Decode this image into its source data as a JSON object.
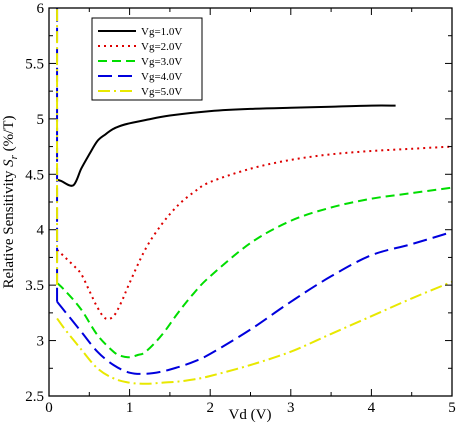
{
  "chart_data": {
    "type": "line",
    "title": "",
    "xlabel": "Vd (V)",
    "ylabel": {
      "prefix": "Relative Sensitivity ",
      "symbol": "S",
      "subscript": "r",
      "suffix": " (%/T)"
    },
    "xlim": [
      0,
      5
    ],
    "ylim": [
      2.5,
      6
    ],
    "xticks": [
      "0",
      "1",
      "2",
      "3",
      "4",
      "5"
    ],
    "yticks": [
      "2.5",
      "3",
      "3.5",
      "4",
      "4.5",
      "5",
      "5.5",
      "6"
    ],
    "grid": false,
    "legend_position": "top-left",
    "series": [
      {
        "name": "Vg=1.0V",
        "color": "#000000",
        "dash": "solid",
        "x": [
          0.1,
          0.15,
          0.3,
          0.4,
          0.5,
          0.6,
          0.7,
          0.8,
          0.9,
          1.0,
          1.2,
          1.5,
          2.0,
          2.5,
          3.0,
          3.5,
          4.0,
          4.3
        ],
        "y": [
          4.45,
          4.44,
          4.4,
          4.55,
          4.68,
          4.8,
          4.86,
          4.91,
          4.94,
          4.96,
          4.99,
          5.03,
          5.07,
          5.09,
          5.1,
          5.11,
          5.12,
          5.12
        ]
      },
      {
        "name": "Vg=2.0V",
        "color": "#dd0000",
        "dash": "dotted",
        "x": [
          0.1,
          0.2,
          0.3,
          0.4,
          0.5,
          0.6,
          0.7,
          0.8,
          0.9,
          1.0,
          1.2,
          1.4,
          1.6,
          1.8,
          2.0,
          2.5,
          3.0,
          3.5,
          4.0,
          4.5,
          5.0
        ],
        "y": [
          3.82,
          3.75,
          3.68,
          3.6,
          3.45,
          3.3,
          3.2,
          3.22,
          3.35,
          3.52,
          3.83,
          4.05,
          4.22,
          4.34,
          4.43,
          4.55,
          4.63,
          4.68,
          4.71,
          4.73,
          4.75
        ]
      },
      {
        "name": "Vg=3.0V",
        "color": "#00dd00",
        "dash": "dashed",
        "x": [
          0.1,
          0.2,
          0.4,
          0.6,
          0.8,
          0.9,
          1.0,
          1.1,
          1.2,
          1.4,
          1.6,
          1.8,
          2.0,
          2.5,
          3.0,
          3.5,
          4.0,
          4.5,
          5.0
        ],
        "y": [
          3.52,
          3.45,
          3.28,
          3.05,
          2.9,
          2.86,
          2.85,
          2.87,
          2.9,
          3.05,
          3.25,
          3.43,
          3.58,
          3.88,
          4.08,
          4.2,
          4.28,
          4.33,
          4.38
        ]
      },
      {
        "name": "Vg=4.0V",
        "color": "#0000dd",
        "dash": "longdash",
        "x": [
          0.1,
          0.2,
          0.4,
          0.6,
          0.8,
          1.0,
          1.2,
          1.4,
          1.6,
          1.8,
          2.0,
          2.5,
          3.0,
          3.5,
          4.0,
          4.5,
          5.0
        ],
        "y": [
          3.35,
          3.26,
          3.08,
          2.9,
          2.78,
          2.71,
          2.7,
          2.72,
          2.76,
          2.81,
          2.88,
          3.1,
          3.35,
          3.58,
          3.77,
          3.87,
          3.98
        ]
      },
      {
        "name": "Vg=5.0V",
        "color": "#e8e800",
        "dash": "dashdot",
        "x": [
          0.1,
          0.2,
          0.4,
          0.6,
          0.8,
          1.0,
          1.2,
          1.4,
          1.6,
          1.8,
          2.0,
          2.5,
          3.0,
          3.5,
          4.0,
          4.5,
          5.0
        ],
        "y": [
          3.2,
          3.1,
          2.92,
          2.75,
          2.66,
          2.62,
          2.61,
          2.62,
          2.63,
          2.65,
          2.68,
          2.78,
          2.9,
          3.06,
          3.22,
          3.38,
          3.53
        ]
      }
    ],
    "vertical_spikes": [
      {
        "x": 0.1,
        "y_from": 3.35,
        "y_to": 6.0,
        "color": "#0000dd",
        "dash": "longdash"
      },
      {
        "x": 0.1,
        "y_from": 3.5,
        "y_to": 6.0,
        "color": "#e8e800",
        "dash": "dashdot"
      }
    ]
  }
}
